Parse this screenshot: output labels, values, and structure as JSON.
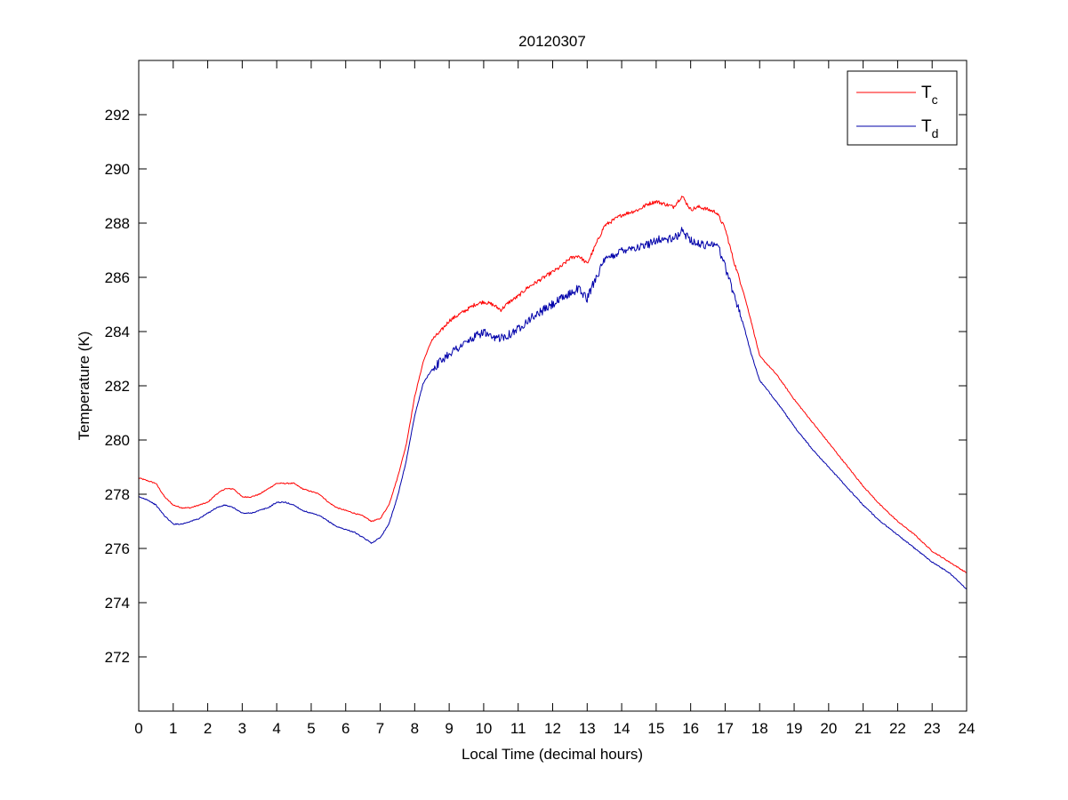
{
  "chart_data": {
    "type": "line",
    "title": "20120307",
    "xlabel": "Local Time (decimal hours)",
    "ylabel": "Temperature (K)",
    "xlim": [
      0,
      24
    ],
    "ylim": [
      270,
      294
    ],
    "x_ticks": [
      0,
      1,
      2,
      3,
      4,
      5,
      6,
      7,
      8,
      9,
      10,
      11,
      12,
      13,
      14,
      15,
      16,
      17,
      18,
      19,
      20,
      21,
      22,
      23,
      24
    ],
    "y_ticks": [
      272,
      274,
      276,
      278,
      280,
      282,
      284,
      286,
      288,
      290,
      292
    ],
    "grid": false,
    "legend_position": "top-right",
    "colors": {
      "Tc": "#ff0000",
      "Td": "#0000aa"
    },
    "series": [
      {
        "name": "Tc",
        "legend_main": "T",
        "legend_sub": "c",
        "color": "#ff0000",
        "x": [
          0,
          0.25,
          0.5,
          0.75,
          1.0,
          1.25,
          1.5,
          1.75,
          2.0,
          2.25,
          2.5,
          2.75,
          3.0,
          3.25,
          3.5,
          3.75,
          4.0,
          4.25,
          4.5,
          4.75,
          5.0,
          5.25,
          5.5,
          5.75,
          6.0,
          6.25,
          6.5,
          6.75,
          7.0,
          7.25,
          7.5,
          7.75,
          8.0,
          8.25,
          8.5,
          8.75,
          9.0,
          9.25,
          9.5,
          9.75,
          10.0,
          10.25,
          10.5,
          10.75,
          11.0,
          11.25,
          11.5,
          11.75,
          12.0,
          12.25,
          12.5,
          12.75,
          13.0,
          13.25,
          13.5,
          13.75,
          14.0,
          14.25,
          14.5,
          14.75,
          15.0,
          15.25,
          15.5,
          15.75,
          16.0,
          16.25,
          16.5,
          16.75,
          17.0,
          17.25,
          17.5,
          17.75,
          18.0,
          18.5,
          19.0,
          19.5,
          20.0,
          20.5,
          21.0,
          21.5,
          22.0,
          22.5,
          23.0,
          23.5,
          24.0
        ],
        "values": [
          278.6,
          278.5,
          278.4,
          277.9,
          277.6,
          277.5,
          277.5,
          277.6,
          277.7,
          278.0,
          278.2,
          278.2,
          277.9,
          277.9,
          278.0,
          278.2,
          278.4,
          278.4,
          278.4,
          278.2,
          278.1,
          278.0,
          277.7,
          277.5,
          277.4,
          277.3,
          277.2,
          277.0,
          277.1,
          277.6,
          278.6,
          279.8,
          281.6,
          282.9,
          283.7,
          284.0,
          284.4,
          284.6,
          284.8,
          285.0,
          285.1,
          285.0,
          284.8,
          285.1,
          285.3,
          285.6,
          285.8,
          286.0,
          286.2,
          286.4,
          286.7,
          286.8,
          286.5,
          287.2,
          287.9,
          288.1,
          288.3,
          288.4,
          288.5,
          288.7,
          288.8,
          288.7,
          288.6,
          289.0,
          288.5,
          288.6,
          288.5,
          288.4,
          287.8,
          286.6,
          285.6,
          284.4,
          283.1,
          282.4,
          281.5,
          280.7,
          279.9,
          279.1,
          278.3,
          277.6,
          277.0,
          276.5,
          275.9,
          275.5,
          275.1
        ]
      },
      {
        "name": "Td",
        "legend_main": "T",
        "legend_sub": "d",
        "color": "#0000aa",
        "x": [
          0,
          0.25,
          0.5,
          0.75,
          1.0,
          1.25,
          1.5,
          1.75,
          2.0,
          2.25,
          2.5,
          2.75,
          3.0,
          3.25,
          3.5,
          3.75,
          4.0,
          4.25,
          4.5,
          4.75,
          5.0,
          5.25,
          5.5,
          5.75,
          6.0,
          6.25,
          6.5,
          6.75,
          7.0,
          7.25,
          7.5,
          7.75,
          8.0,
          8.25,
          8.5,
          8.75,
          9.0,
          9.25,
          9.5,
          9.75,
          10.0,
          10.25,
          10.5,
          10.75,
          11.0,
          11.25,
          11.5,
          11.75,
          12.0,
          12.25,
          12.5,
          12.75,
          13.0,
          13.25,
          13.5,
          13.75,
          14.0,
          14.25,
          14.5,
          14.75,
          15.0,
          15.25,
          15.5,
          15.75,
          16.0,
          16.25,
          16.5,
          16.75,
          17.0,
          17.25,
          17.5,
          17.75,
          18.0,
          18.5,
          19.0,
          19.5,
          20.0,
          20.5,
          21.0,
          21.5,
          22.0,
          22.5,
          23.0,
          23.5,
          24.0
        ],
        "values": [
          277.9,
          277.8,
          277.6,
          277.2,
          276.9,
          276.9,
          277.0,
          277.1,
          277.3,
          277.5,
          277.6,
          277.5,
          277.3,
          277.3,
          277.4,
          277.5,
          277.7,
          277.7,
          277.6,
          277.4,
          277.3,
          277.2,
          277.0,
          276.8,
          276.7,
          276.6,
          276.4,
          276.2,
          276.4,
          276.9,
          277.9,
          279.2,
          280.9,
          282.1,
          282.6,
          282.9,
          283.2,
          283.4,
          283.6,
          283.8,
          284.0,
          283.7,
          283.8,
          283.9,
          284.1,
          284.4,
          284.6,
          284.8,
          285.0,
          285.2,
          285.4,
          285.6,
          285.2,
          286.0,
          286.6,
          286.8,
          287.0,
          287.1,
          287.1,
          287.2,
          287.4,
          287.4,
          287.4,
          287.7,
          287.4,
          287.2,
          287.2,
          287.3,
          286.4,
          285.4,
          284.4,
          283.2,
          282.2,
          281.4,
          280.5,
          279.7,
          279.0,
          278.3,
          277.6,
          277.0,
          276.5,
          276.0,
          275.5,
          275.1,
          274.5
        ]
      }
    ]
  }
}
